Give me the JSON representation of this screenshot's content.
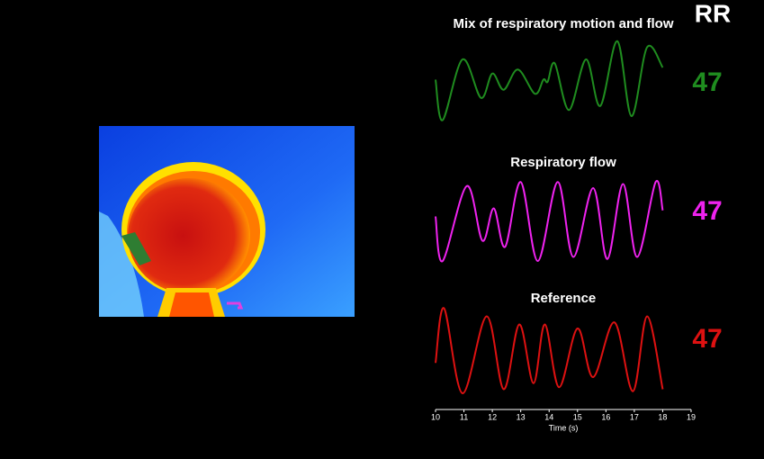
{
  "chart_data": {
    "type": "line",
    "rate_label": "RR",
    "xlabel": "Time (s)",
    "xlim": [
      10,
      19
    ],
    "xticks": [
      10,
      11,
      12,
      13,
      14,
      15,
      16,
      17,
      18,
      19
    ],
    "ylim": [
      -1.2,
      1.2
    ],
    "series": [
      {
        "name": "Mix of respiratory motion and flow",
        "color": "#1f8c1f",
        "rate": 47,
        "x": [
          10.0,
          10.25,
          10.95,
          11.6,
          12.0,
          12.4,
          12.9,
          13.5,
          13.8,
          13.95,
          14.2,
          14.7,
          15.3,
          15.8,
          16.4,
          16.9,
          17.45,
          18.0
        ],
        "values": [
          0.1,
          -0.9,
          0.6,
          -0.35,
          0.25,
          -0.15,
          0.35,
          -0.25,
          0.1,
          0.05,
          0.5,
          -0.65,
          0.6,
          -0.55,
          1.05,
          -0.8,
          0.9,
          0.4
        ]
      },
      {
        "name": "Respiratory flow",
        "color": "#ee22ee",
        "rate": 47,
        "x": [
          10.0,
          10.25,
          11.1,
          11.65,
          12.05,
          12.45,
          13.0,
          13.6,
          14.3,
          14.85,
          15.55,
          16.05,
          16.6,
          17.1,
          17.75,
          18.0
        ],
        "values": [
          0.1,
          -1.0,
          0.85,
          -0.5,
          0.3,
          -0.65,
          0.95,
          -1.0,
          0.95,
          -0.9,
          0.8,
          -0.95,
          0.9,
          -0.9,
          0.95,
          0.25
        ]
      },
      {
        "name": "Reference",
        "color": "#dd1111",
        "rate": 47,
        "x": [
          10.0,
          10.3,
          10.95,
          11.8,
          12.4,
          12.95,
          13.45,
          13.85,
          14.35,
          15.0,
          15.55,
          16.3,
          16.95,
          17.45,
          18.0
        ],
        "values": [
          -0.25,
          1.1,
          -1.0,
          0.9,
          -0.9,
          0.7,
          -0.75,
          0.7,
          -0.85,
          0.6,
          -0.6,
          0.75,
          -0.95,
          0.9,
          -0.9
        ]
      }
    ]
  }
}
